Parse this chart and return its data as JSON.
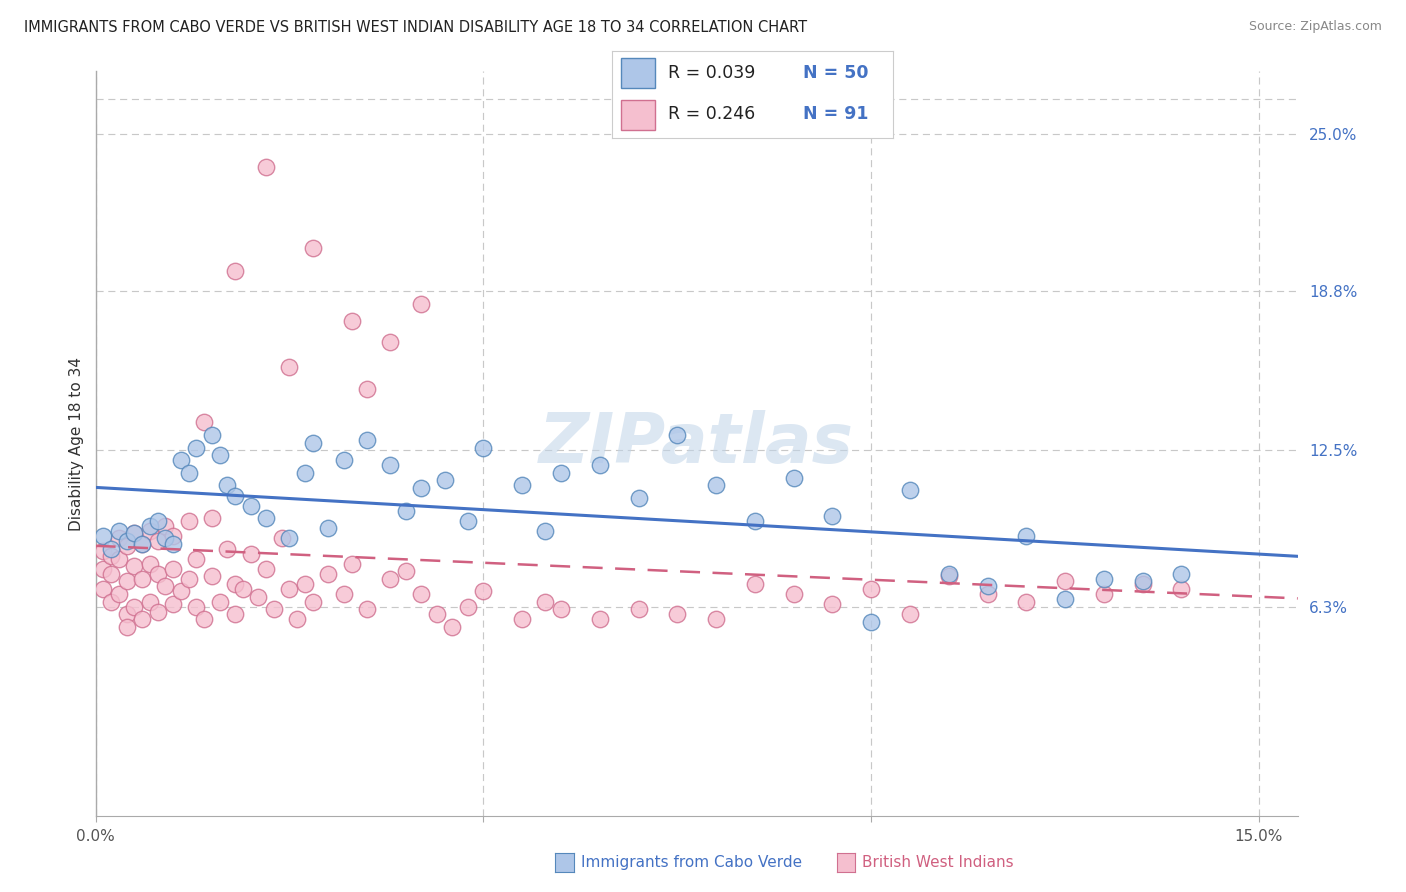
{
  "title": "IMMIGRANTS FROM CABO VERDE VS BRITISH WEST INDIAN DISABILITY AGE 18 TO 34 CORRELATION CHART",
  "source": "Source: ZipAtlas.com",
  "ylabel": "Disability Age 18 to 34",
  "xlim": [
    0.0,
    0.155
  ],
  "ylim": [
    -0.02,
    0.275
  ],
  "ytick_labels_right": [
    "25.0%",
    "18.8%",
    "12.5%",
    "6.3%"
  ],
  "ytick_values_right": [
    0.25,
    0.188,
    0.125,
    0.063
  ],
  "grid_color": "#c8c8c8",
  "watermark": "ZIPatlas",
  "legend_R1": "0.039",
  "legend_N1": "50",
  "legend_R2": "0.246",
  "legend_N2": "91",
  "series1_color": "#aec6e8",
  "series1_edge": "#5588bb",
  "series2_color": "#f5bfcf",
  "series2_edge": "#d07090",
  "series1_label": "Immigrants from Cabo Verde",
  "series2_label": "British West Indians",
  "line1_color": "#4472c4",
  "line2_color": "#d06080",
  "background_color": "#ffffff",
  "title_fontsize": 10.5,
  "axis_label_fontsize": 11,
  "tick_fontsize": 11,
  "watermark_fontsize": 50,
  "watermark_color": "#c0d4e8",
  "watermark_alpha": 0.55,
  "title_color": "#222222",
  "source_color": "#888888",
  "legend_text_color": "#222222",
  "legend_val_color": "#4472c4"
}
